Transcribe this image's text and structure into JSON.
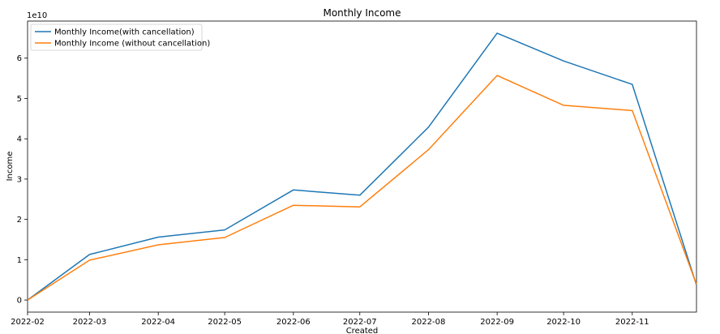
{
  "chart_data": {
    "type": "line",
    "title": "Monthly Income",
    "xlabel": "Created",
    "ylabel": "Income",
    "y_offset_label": "1e10",
    "x": [
      "2022-02-01",
      "2022-03-01",
      "2022-04-01",
      "2022-05-01",
      "2022-06-01",
      "2022-07-01",
      "2022-08-01",
      "2022-09-01",
      "2022-10-01",
      "2022-11-01",
      "2022-11-30"
    ],
    "x_ticks": [
      "2022-02",
      "2022-03",
      "2022-04",
      "2022-05",
      "2022-06",
      "2022-07",
      "2022-08",
      "2022-09",
      "2022-10",
      "2022-11"
    ],
    "y_ticks": [
      0,
      1,
      2,
      3,
      4,
      5,
      6
    ],
    "ylim": [
      -0.3,
      6.92
    ],
    "grid": false,
    "legend_position": "top-left",
    "series": [
      {
        "name": "Monthly Income(with cancellation)",
        "color": "#1f77b4",
        "values": [
          0.0,
          1.13,
          1.56,
          1.74,
          2.73,
          2.6,
          4.29,
          6.62,
          5.93,
          5.35,
          0.37
        ]
      },
      {
        "name": "Monthly Income (without cancellation)",
        "color": "#ff7f0e",
        "values": [
          0.0,
          0.99,
          1.37,
          1.55,
          2.35,
          2.31,
          3.73,
          5.57,
          4.83,
          4.7,
          0.39
        ]
      }
    ]
  }
}
